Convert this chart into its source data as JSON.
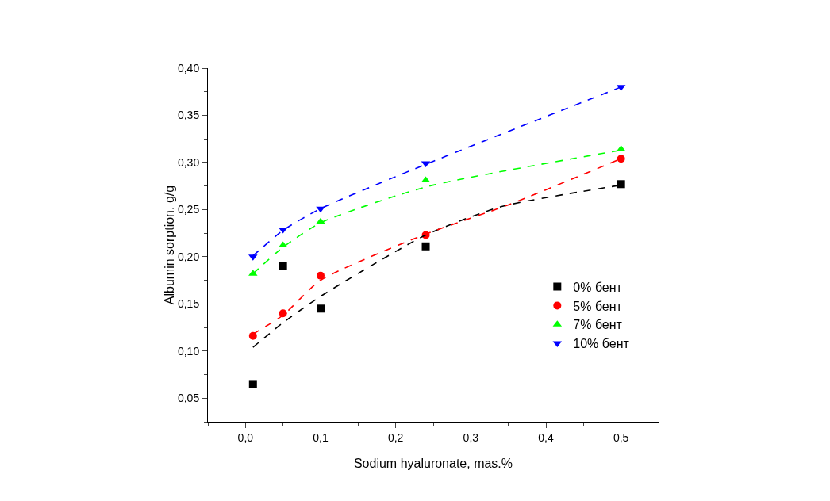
{
  "chart_data": {
    "type": "scatter",
    "xlabel": "Sodium hyaluronate, mas.%",
    "ylabel": "Albumin sorption, g/g",
    "x": [
      0.01,
      0.05,
      0.1,
      0.24,
      0.5
    ],
    "series": [
      {
        "name": "0% бент",
        "color": "#000000",
        "marker": "square",
        "values": [
          0.065,
          0.19,
          0.145,
          0.211,
          0.277
        ]
      },
      {
        "name": "5% бент",
        "color": "#ff0000",
        "marker": "circle",
        "values": [
          0.116,
          0.14,
          0.18,
          0.223,
          0.304
        ]
      },
      {
        "name": "7% бент",
        "color": "#00ff00",
        "marker": "triangle",
        "values": [
          0.182,
          0.212,
          0.237,
          0.281,
          0.314
        ]
      },
      {
        "name": "10% бент",
        "color": "#0000ff",
        "marker": "triangle-down",
        "values": [
          0.2,
          0.229,
          0.251,
          0.299,
          0.38
        ]
      },
      {
        "type": "line",
        "color": "#000000",
        "line_style": "dashed",
        "x": [
          0.01,
          0.05,
          0.1,
          0.24,
          0.34,
          0.5
        ],
        "values": [
          0.104,
          0.13,
          0.158,
          0.223,
          0.253,
          0.276
        ]
      },
      {
        "type": "line",
        "color": "#ff0000",
        "line_style": "dashed",
        "x": [
          0.01,
          0.05,
          0.1,
          0.24,
          0.35,
          0.5
        ],
        "values": [
          0.118,
          0.138,
          0.175,
          0.224,
          0.255,
          0.304
        ]
      },
      {
        "type": "line",
        "color": "#00ff00",
        "line_style": "dashed",
        "x": [
          0.01,
          0.05,
          0.1,
          0.24,
          0.5
        ],
        "values": [
          0.182,
          0.21,
          0.236,
          0.274,
          0.313
        ]
      },
      {
        "type": "line",
        "color": "#0000ff",
        "line_style": "dashed",
        "x": [
          0.01,
          0.05,
          0.1,
          0.24,
          0.5
        ],
        "values": [
          0.201,
          0.228,
          0.251,
          0.298,
          0.38
        ]
      }
    ],
    "xlim": [
      -0.05,
      0.55
    ],
    "xticks": [
      {
        "value": 0,
        "label": "0,0"
      },
      {
        "value": 0.1,
        "label": "0,1"
      },
      {
        "value": 0.2,
        "label": "0,2"
      },
      {
        "value": 0.3,
        "label": "0,3"
      },
      {
        "value": 0.4,
        "label": "0,4"
      },
      {
        "value": 0.5,
        "label": "0,5"
      }
    ],
    "ylim": [
      0.025,
      0.4
    ],
    "yticks": [
      {
        "value": 0.05,
        "label": "0,05"
      },
      {
        "value": 0.1,
        "label": "0,10"
      },
      {
        "value": 0.15,
        "label": "0,15"
      },
      {
        "value": 0.2,
        "label": "0,20"
      },
      {
        "value": 0.25,
        "label": "0,25"
      },
      {
        "value": 0.3,
        "label": "0,30"
      },
      {
        "value": 0.35,
        "label": "0,35"
      },
      {
        "value": 0.4,
        "label": "0,40"
      }
    ],
    "grid": false,
    "legend": "right"
  }
}
